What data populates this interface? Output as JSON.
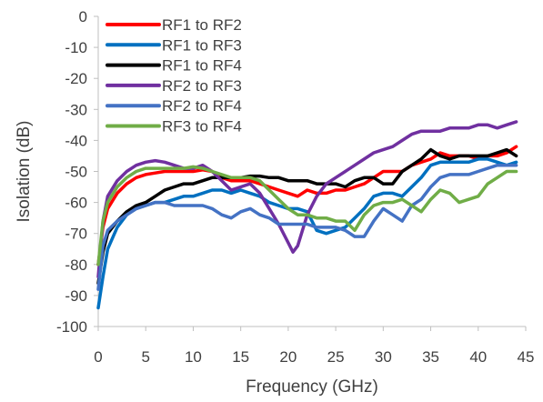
{
  "chart_data": {
    "type": "line",
    "title": "",
    "xlabel": "Frequency (GHz)",
    "ylabel": "Isolation (dB)",
    "xlim": [
      0,
      45
    ],
    "ylim": [
      -100,
      0
    ],
    "xticks": [
      "0",
      "5",
      "10",
      "15",
      "20",
      "25",
      "30",
      "35",
      "40",
      "45"
    ],
    "yticks": [
      "0",
      "-10",
      "-20",
      "-30",
      "-40",
      "-50",
      "-60",
      "-70",
      "-80",
      "-90",
      "-100"
    ],
    "grid": false,
    "legend_position": "top-left",
    "series": [
      {
        "name": "RF1 to RF2",
        "color": "#ff0000",
        "x": [
          0,
          0.5,
          1,
          2,
          3,
          4,
          5,
          6,
          7,
          8,
          9,
          10,
          11,
          12,
          13,
          14,
          15,
          16,
          17,
          18,
          19,
          20,
          21,
          22,
          23,
          24,
          25,
          26,
          27,
          28,
          29,
          30,
          31,
          32,
          33,
          34,
          35,
          36,
          37,
          38,
          39,
          40,
          41,
          42,
          43,
          44
        ],
        "y": [
          -80,
          -68,
          -62,
          -57,
          -54,
          -52,
          -51,
          -50.5,
          -50,
          -50,
          -50,
          -50,
          -49.5,
          -50,
          -52,
          -53,
          -53,
          -53,
          -54,
          -55,
          -56,
          -57,
          -58,
          -56,
          -57,
          -57,
          -56,
          -56,
          -55,
          -54,
          -52,
          -50,
          -50,
          -50,
          -48,
          -47,
          -46,
          -44,
          -45,
          -45,
          -45,
          -46,
          -45,
          -45,
          -44,
          -42
        ]
      },
      {
        "name": "RF1 to RF3",
        "color": "#0070c0",
        "x": [
          0,
          0.5,
          1,
          2,
          3,
          4,
          5,
          6,
          7,
          8,
          9,
          10,
          11,
          12,
          13,
          14,
          15,
          16,
          17,
          18,
          19,
          20,
          21,
          22,
          23,
          24,
          25,
          26,
          27,
          28,
          29,
          30,
          31,
          32,
          33,
          34,
          35,
          36,
          37,
          38,
          39,
          40,
          41,
          42,
          43,
          44
        ],
        "y": [
          -94,
          -84,
          -75,
          -68,
          -64,
          -62,
          -61,
          -60,
          -60,
          -59,
          -58,
          -58,
          -57,
          -56,
          -56,
          -57,
          -56,
          -57,
          -58,
          -60,
          -61,
          -62,
          -62,
          -63,
          -69,
          -70,
          -69,
          -68,
          -65,
          -62,
          -58,
          -57,
          -57,
          -58,
          -55,
          -52,
          -48,
          -47,
          -47,
          -47,
          -47,
          -46,
          -46,
          -47,
          -48,
          -47
        ]
      },
      {
        "name": "RF1 to RF4",
        "color": "#000000",
        "x": [
          0,
          0.5,
          1,
          2,
          3,
          4,
          5,
          6,
          7,
          8,
          9,
          10,
          11,
          12,
          13,
          14,
          15,
          16,
          17,
          18,
          19,
          20,
          21,
          22,
          23,
          24,
          25,
          26,
          27,
          28,
          29,
          30,
          31,
          32,
          33,
          34,
          35,
          36,
          37,
          38,
          39,
          40,
          41,
          42,
          43,
          44
        ],
        "y": [
          -86,
          -76,
          -70,
          -66,
          -63,
          -61,
          -60,
          -58,
          -56,
          -55,
          -54,
          -54,
          -53,
          -52,
          -52,
          -52,
          -52,
          -51.5,
          -51.5,
          -52,
          -52,
          -53,
          -53,
          -53,
          -54,
          -54,
          -54,
          -55,
          -53,
          -52,
          -52,
          -54,
          -54,
          -50,
          -48,
          -46,
          -43,
          -45,
          -46,
          -45,
          -45,
          -45,
          -45,
          -44,
          -43,
          -45
        ]
      },
      {
        "name": "RF2 to RF3",
        "color": "#7030a0",
        "x": [
          0,
          0.5,
          1,
          2,
          3,
          4,
          5,
          6,
          7,
          8,
          9,
          10,
          11,
          12,
          13,
          14,
          15,
          16,
          17,
          18,
          19,
          20,
          20.5,
          21,
          22,
          23,
          24,
          25,
          26,
          27,
          28,
          29,
          30,
          31,
          32,
          33,
          34,
          35,
          36,
          37,
          38,
          39,
          40,
          41,
          42,
          43,
          44
        ],
        "y": [
          -84,
          -66,
          -58,
          -53,
          -50,
          -48,
          -47,
          -46.5,
          -47,
          -48,
          -49,
          -49,
          -48,
          -50,
          -53,
          -56,
          -55,
          -54,
          -57,
          -62,
          -67,
          -73,
          -76,
          -74,
          -64,
          -58,
          -54,
          -52,
          -50,
          -48,
          -46,
          -44,
          -43,
          -42,
          -40,
          -38,
          -37,
          -37,
          -37,
          -36,
          -36,
          -36,
          -35,
          -35,
          -36,
          -35,
          -34
        ]
      },
      {
        "name": "RF2 to RF4",
        "color": "#4472c4",
        "x": [
          0,
          0.5,
          1,
          2,
          3,
          4,
          5,
          6,
          7,
          8,
          9,
          10,
          11,
          12,
          13,
          14,
          15,
          16,
          17,
          18,
          19,
          20,
          21,
          22,
          23,
          24,
          25,
          26,
          27,
          28,
          29,
          30,
          31,
          32,
          33,
          34,
          35,
          36,
          37,
          38,
          39,
          40,
          41,
          42,
          43,
          44
        ],
        "y": [
          -88,
          -74,
          -69,
          -66,
          -64,
          -62,
          -61,
          -60,
          -60,
          -61,
          -61,
          -61,
          -61,
          -62,
          -64,
          -65,
          -63,
          -62,
          -64,
          -65,
          -67,
          -67,
          -67,
          -67,
          -68,
          -68,
          -68,
          -69,
          -71,
          -71,
          -66,
          -62,
          -64,
          -66,
          -61,
          -59,
          -55,
          -52,
          -51,
          -51,
          -51,
          -50,
          -49,
          -48,
          -48,
          -48
        ]
      },
      {
        "name": "RF3 to RF4",
        "color": "#70ad47",
        "x": [
          0,
          0.5,
          1,
          2,
          3,
          4,
          5,
          6,
          7,
          8,
          9,
          10,
          11,
          12,
          13,
          14,
          15,
          16,
          17,
          18,
          19,
          20,
          21,
          22,
          23,
          24,
          25,
          26,
          27,
          28,
          29,
          30,
          31,
          32,
          33,
          34,
          35,
          36,
          37,
          38,
          39,
          40,
          41,
          42,
          43,
          44
        ],
        "y": [
          -80,
          -66,
          -60,
          -55,
          -52,
          -50,
          -49,
          -49,
          -49,
          -49,
          -49,
          -48.5,
          -49,
          -50,
          -51,
          -52,
          -52,
          -52,
          -53,
          -56,
          -59,
          -62,
          -64,
          -64,
          -65,
          -65,
          -66,
          -66,
          -69,
          -64,
          -61,
          -60,
          -60,
          -59,
          -61,
          -63,
          -59,
          -56,
          -57,
          -60,
          -59,
          -58,
          -54,
          -52,
          -50,
          -50
        ]
      }
    ]
  }
}
